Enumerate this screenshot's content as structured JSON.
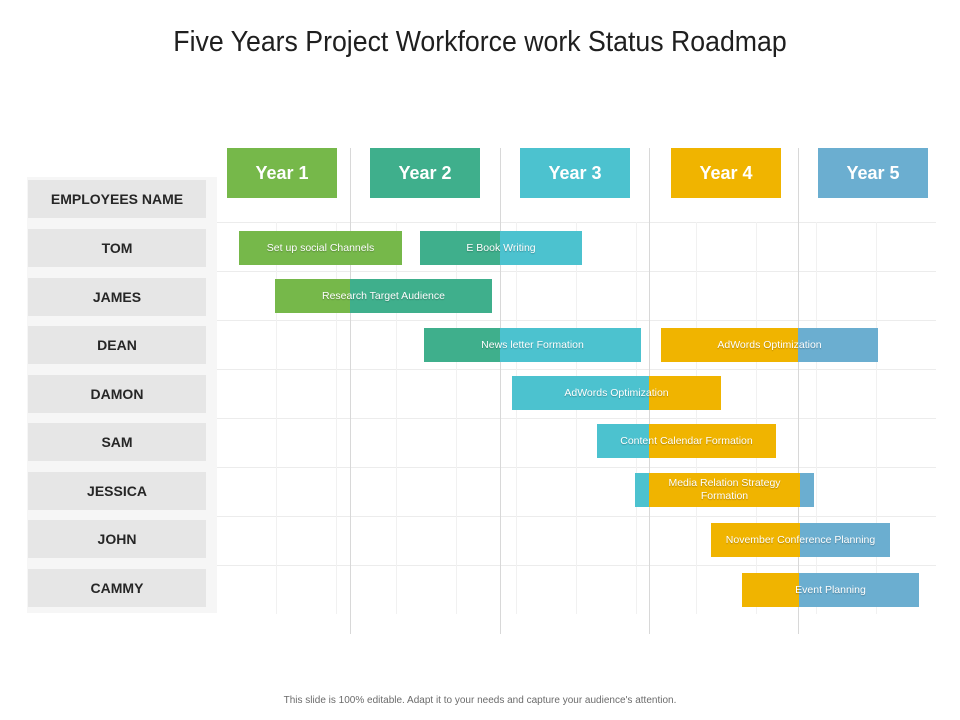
{
  "title": "Five Years Project Workforce work Status Roadmap",
  "header_label": "EMPLOYEES NAME",
  "years": [
    "Year 1",
    "Year 2",
    "Year 3",
    "Year 4",
    "Year 5"
  ],
  "employees": [
    "TOM",
    "JAMES",
    "DEAN",
    "DAMON",
    "SAM",
    "JESSICA",
    "JOHN",
    "CAMMY"
  ],
  "tasks": [
    {
      "employee": "TOM",
      "label": "Set up social Channels"
    },
    {
      "employee": "TOM",
      "label": "E Book Writing"
    },
    {
      "employee": "JAMES",
      "label": "Research Target Audience"
    },
    {
      "employee": "DEAN",
      "label": "News letter Formation"
    },
    {
      "employee": "DEAN",
      "label": "AdWords Optimization"
    },
    {
      "employee": "DAMON",
      "label": "AdWords Optimization"
    },
    {
      "employee": "SAM",
      "label": "Content Calendar Formation"
    },
    {
      "employee": "JESSICA",
      "label": "Media Relation Strategy Formation"
    },
    {
      "employee": "JOHN",
      "label": "November Conference Planning"
    },
    {
      "employee": "CAMMY",
      "label": "Event Planning"
    }
  ],
  "colors": {
    "year1": "#76b84a",
    "year2": "#3faf8c",
    "year3": "#4cc2cf",
    "year4": "#f0b400",
    "year5": "#6baed0"
  },
  "footer": "This slide is 100% editable. Adapt it to your needs and capture your audience's attention."
}
